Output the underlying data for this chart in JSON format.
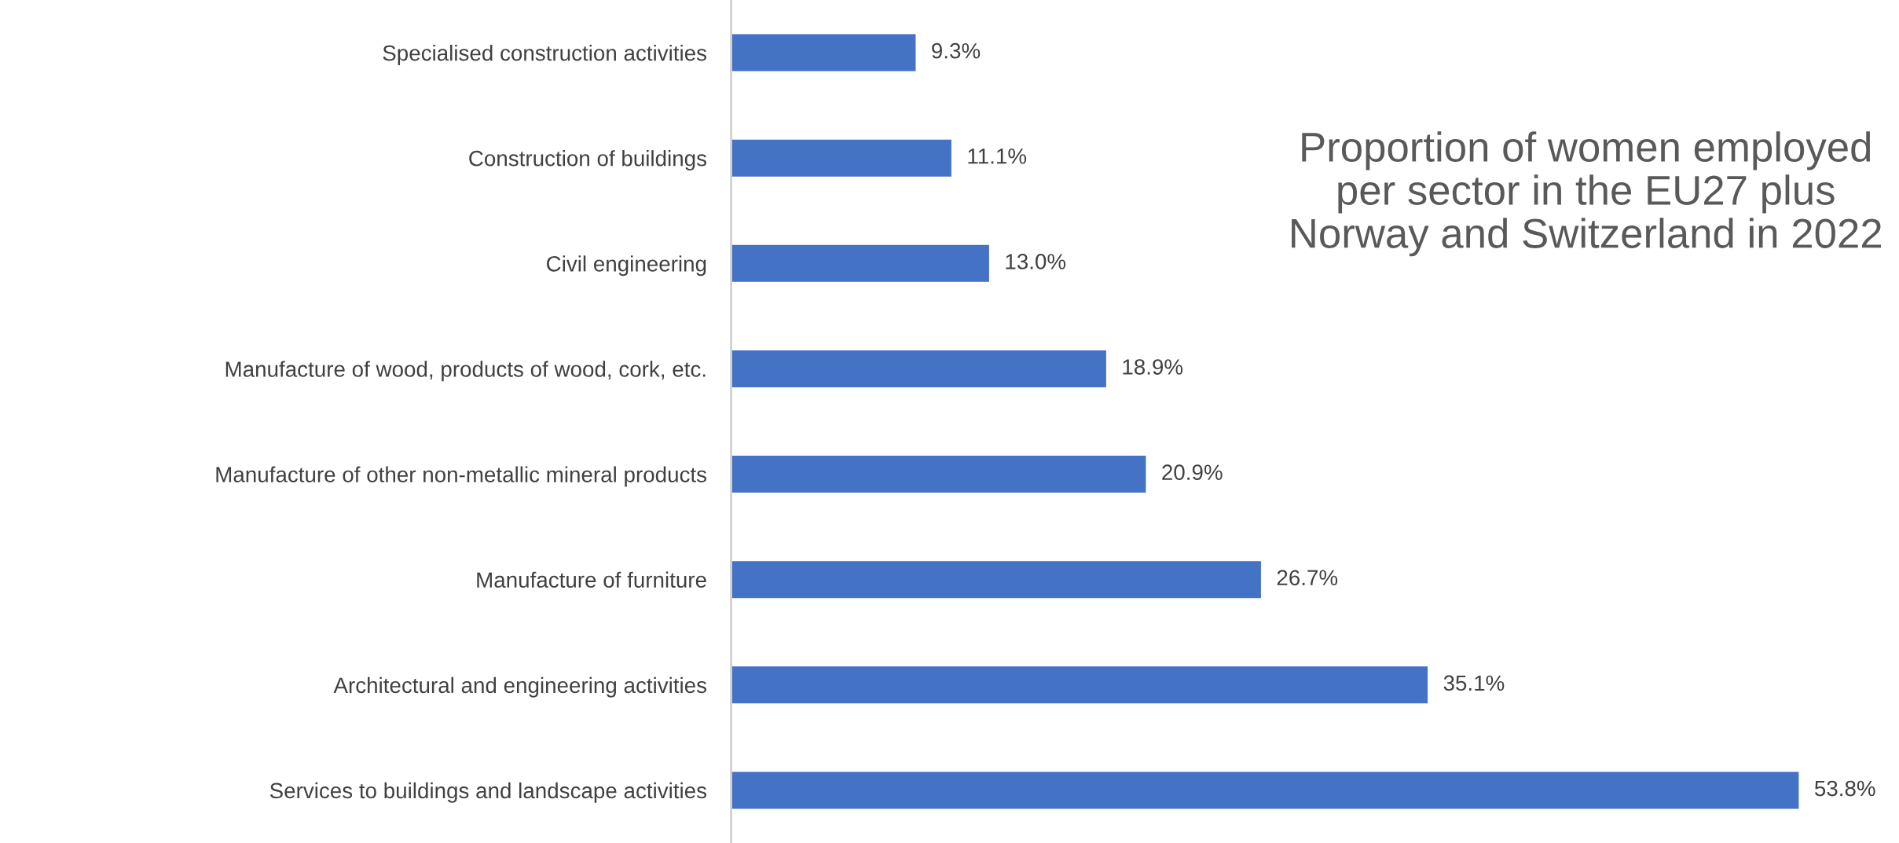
{
  "chart_data": {
    "type": "bar",
    "orientation": "horizontal",
    "title": "Proportion of women employed per sector in the EU27 plus Norway and Switzerland in 2022",
    "categories": [
      "Specialised construction activities",
      "Construction of buildings",
      "Civil engineering",
      "Manufacture of wood, products of wood, cork, etc.",
      "Manufacture of other non-metallic mineral products",
      "Manufacture of furniture",
      "Architectural and engineering activities",
      "Services to buildings and landscape activities"
    ],
    "values": [
      9.3,
      11.1,
      13.0,
      18.9,
      20.9,
      26.7,
      35.1,
      53.8
    ],
    "value_labels": [
      "9.3%",
      "11.1%",
      "13.0%",
      "18.9%",
      "20.9%",
      "26.7%",
      "35.1%",
      "53.8%"
    ],
    "color": "#4472c4",
    "grid": false,
    "legend": false
  }
}
